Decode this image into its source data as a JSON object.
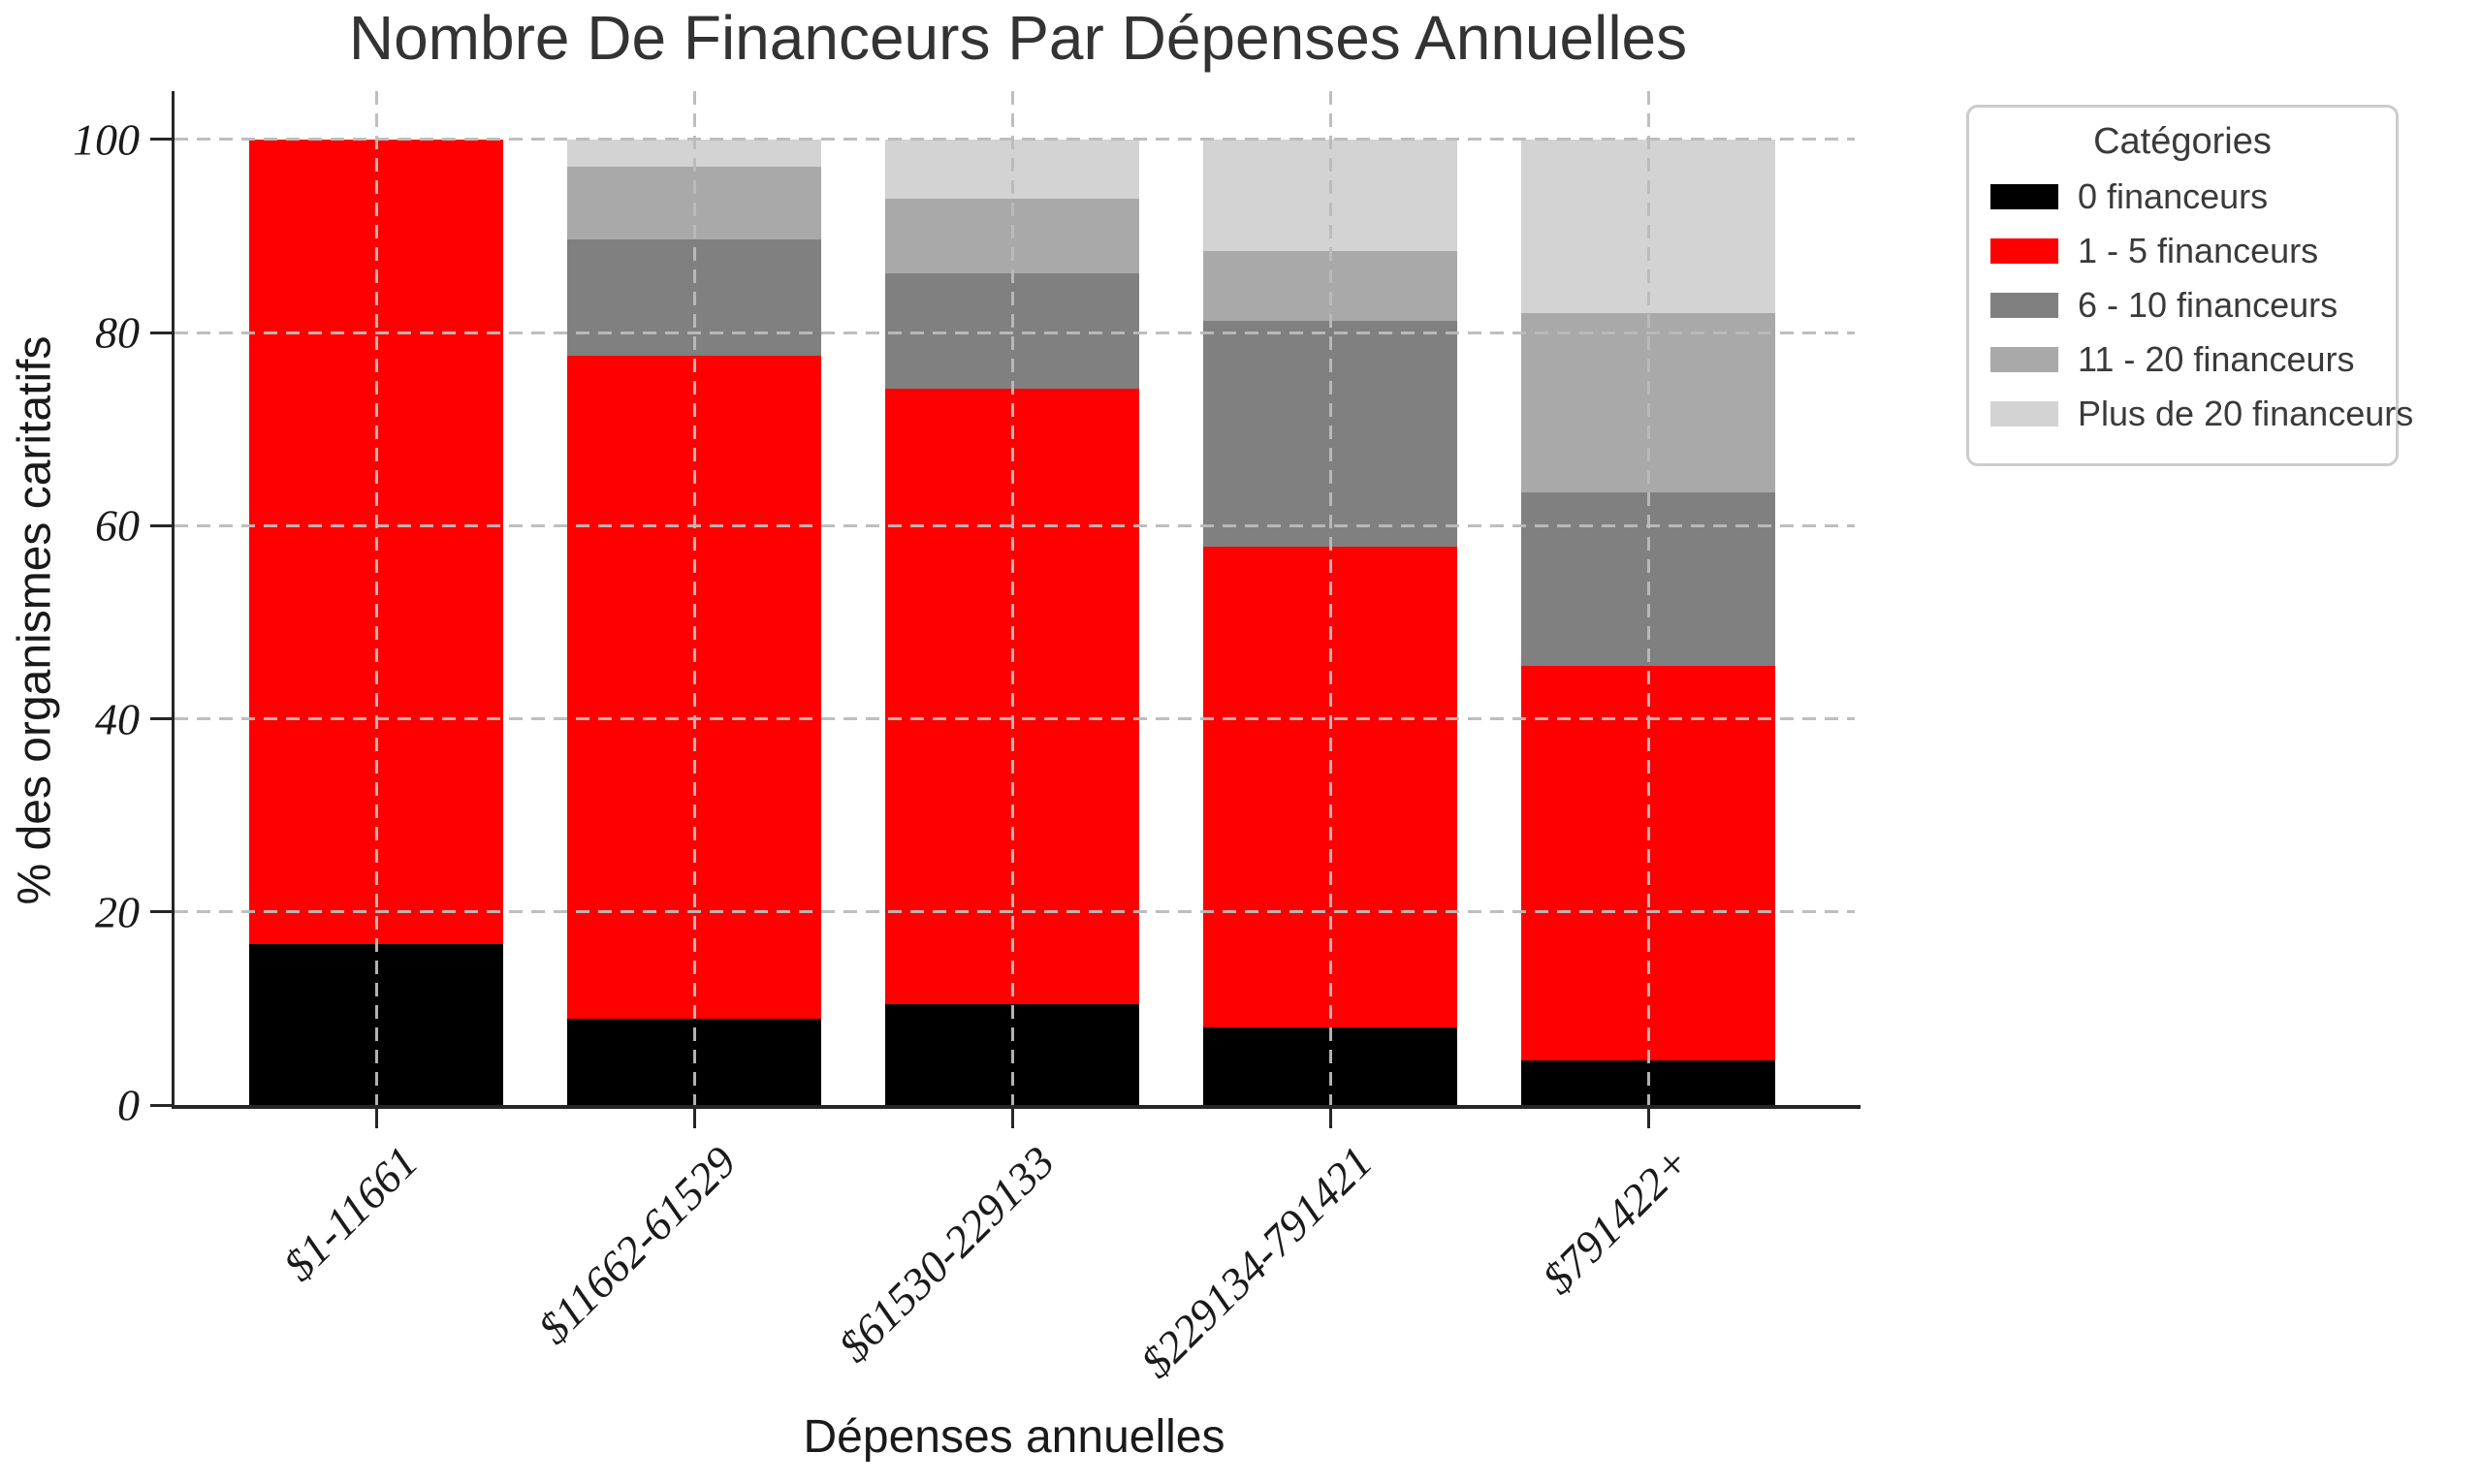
{
  "chart_data": {
    "type": "bar",
    "stacked": true,
    "units": "percent",
    "title": "Nombre De Financeurs Par Dépenses Annuelles",
    "xlabel": "Dépenses annuelles",
    "ylabel": "% des organismes caritatifs",
    "legend_title": "Catégories",
    "legend_position": "outside-upper-right",
    "grid": "dashed-both-axes",
    "ylim": [
      0,
      105
    ],
    "yticks": [
      0,
      20,
      40,
      60,
      80,
      100
    ],
    "categories": [
      "$1-11661",
      "$11662-61529",
      "$61530-229133",
      "$229134-791421",
      "$791422+"
    ],
    "series": [
      {
        "name": "0 financeurs",
        "color": "#000000",
        "values": [
          16.7,
          8.9,
          10.4,
          8.0,
          4.6
        ]
      },
      {
        "name": "1 - 5 financeurs",
        "color": "#ff0000",
        "values": [
          83.3,
          68.7,
          63.8,
          49.8,
          40.9
        ]
      },
      {
        "name": "6 - 10 financeurs",
        "color": "#808080",
        "values": [
          0,
          12.0,
          11.9,
          23.4,
          17.9
        ]
      },
      {
        "name": "11 - 20 financeurs",
        "color": "#a9a9a9",
        "values": [
          0,
          7.6,
          7.8,
          7.2,
          18.6
        ]
      },
      {
        "name": "Plus de 20 financeurs",
        "color": "#d3d3d3",
        "values": [
          0,
          2.8,
          6.1,
          11.6,
          18.0
        ]
      }
    ]
  }
}
